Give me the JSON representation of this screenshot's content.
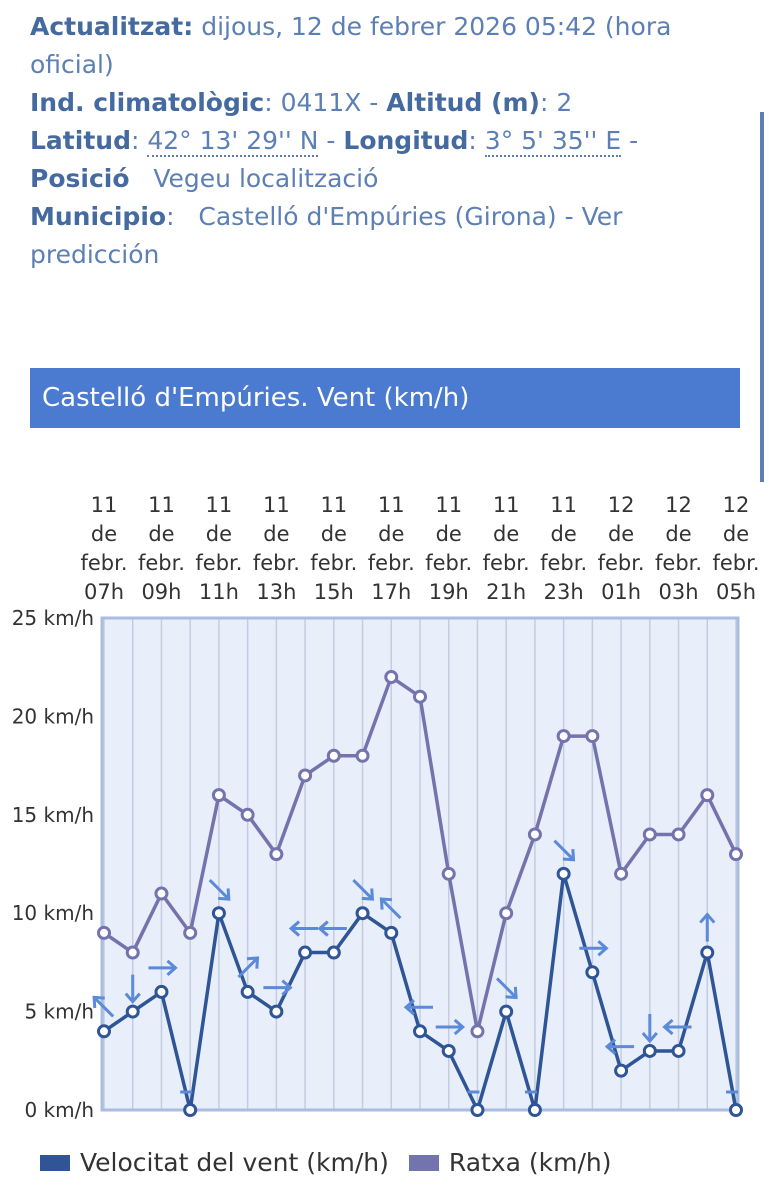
{
  "header": {
    "updated_label": "Actualitzat:",
    "updated_value": "dijous, 12 de febrer 2026 05:42 (hora oficial)",
    "ind_label": "Ind. climatològic",
    "ind_value": ": 0411X -",
    "alt_label": "Altitud (m)",
    "alt_value": ": 2",
    "lat_label": "Latitud",
    "lat_sep": ":",
    "lat_value": "42° 13' 29'' N",
    "lon_sep1": "-",
    "lon_label": "Longitud",
    "lon_sep2": ":",
    "lon_value": "3° 5' 35'' E",
    "lon_tail": "-",
    "pos_label": "Posició",
    "pos_value": "Vegeu localització",
    "mun_label": "Municipio",
    "mun_value": "Castelló d'Empúries (Girona) - Ver predicción"
  },
  "chart_title": "Castelló d'Empúries. Vent (km/h)",
  "colors": {
    "wind": "#2f5596",
    "gust": "#7373ad",
    "arrow": "#5b8ad8",
    "plot_bg": "#e8eefa",
    "grid": "#c3cde0",
    "frame": "#a9bde0"
  },
  "chart_data": {
    "type": "line",
    "title": "Castelló d'Empúries. Vent (km/h)",
    "ylim": [
      0,
      25
    ],
    "y_ticks": [
      "0 km/h",
      "5 km/h",
      "10 km/h",
      "15 km/h",
      "20 km/h",
      "25 km/h"
    ],
    "x_labels": [
      [
        "11",
        "de",
        "febr.",
        "07h"
      ],
      [
        "11",
        "de",
        "febr.",
        "09h"
      ],
      [
        "11",
        "de",
        "febr.",
        "11h"
      ],
      [
        "11",
        "de",
        "febr.",
        "13h"
      ],
      [
        "11",
        "de",
        "febr.",
        "15h"
      ],
      [
        "11",
        "de",
        "febr.",
        "17h"
      ],
      [
        "11",
        "de",
        "febr.",
        "19h"
      ],
      [
        "11",
        "de",
        "febr.",
        "21h"
      ],
      [
        "11",
        "de",
        "febr.",
        "23h"
      ],
      [
        "12",
        "de",
        "febr.",
        "01h"
      ],
      [
        "12",
        "de",
        "febr.",
        "03h"
      ],
      [
        "12",
        "de",
        "febr.",
        "05h"
      ]
    ],
    "hours": [
      "11 07h",
      "11 08h",
      "11 09h",
      "11 10h",
      "11 11h",
      "11 12h",
      "11 13h",
      "11 14h",
      "11 15h",
      "11 16h",
      "11 17h",
      "11 18h",
      "11 19h",
      "11 20h",
      "11 21h",
      "11 22h",
      "11 23h",
      "12 00h",
      "12 01h",
      "12 02h",
      "12 03h",
      "12 04h",
      "12 05h"
    ],
    "grid": true,
    "legend_position": "bottom",
    "series": [
      {
        "name": "Velocitat del vent (km/h)",
        "values": [
          4,
          5,
          6,
          0,
          10,
          6,
          5,
          8,
          8,
          10,
          9,
          4,
          3,
          0,
          5,
          0,
          12,
          7,
          2,
          3,
          3,
          8,
          0
        ]
      },
      {
        "name": "Ratxa (km/h)",
        "values": [
          9,
          8,
          11,
          9,
          16,
          15,
          13,
          17,
          18,
          18,
          22,
          21,
          12,
          4,
          10,
          14,
          19,
          19,
          12,
          14,
          14,
          16,
          13
        ]
      }
    ],
    "wind_direction_deg": [
      135,
      0,
      270,
      null,
      315,
      225,
      270,
      90,
      90,
      315,
      135,
      90,
      270,
      null,
      315,
      null,
      315,
      270,
      90,
      0,
      90,
      180,
      null
    ]
  }
}
